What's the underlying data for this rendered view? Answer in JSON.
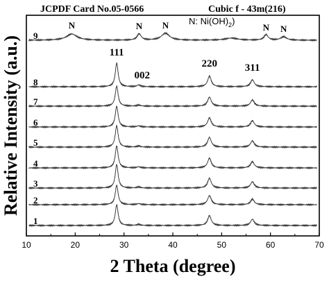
{
  "chart_data": {
    "type": "line",
    "xlabel": "2 Theta (degree)",
    "ylabel": "Relative Intensity (a.u.)",
    "xlim": [
      10,
      70
    ],
    "x_ticks": [
      10,
      20,
      30,
      40,
      50,
      60,
      70
    ],
    "grid": false,
    "legend": "none",
    "header_left": "JCPDF Card No.05-0566",
    "header_right": "Cubic  f - 43m(216)",
    "ni_oh2_note_prefix": "N: Ni(OH)",
    "ni_oh2_note_subscript": "2",
    "peak_labels": [
      {
        "text": "111",
        "x": 28.5
      },
      {
        "text": "002",
        "x": 33.0
      },
      {
        "text": "220",
        "x": 47.5
      },
      {
        "text": "311",
        "x": 56.3
      }
    ],
    "n_peak_labels": [
      {
        "text": "N",
        "x": 19.3
      },
      {
        "text": "N",
        "x": 33.1
      },
      {
        "text": "N",
        "x": 38.5
      },
      {
        "text": "N",
        "x": 59.1
      },
      {
        "text": "N",
        "x": 62.7
      }
    ],
    "series": [
      {
        "name": "1",
        "peaks": [
          {
            "x": 28.5,
            "h": 30,
            "w": 0.35
          },
          {
            "x": 33.0,
            "h": 1.5,
            "w": 0.4
          },
          {
            "x": 47.5,
            "h": 14,
            "w": 0.45
          },
          {
            "x": 56.3,
            "h": 9,
            "w": 0.45
          }
        ]
      },
      {
        "name": "2",
        "peaks": [
          {
            "x": 28.5,
            "h": 28,
            "w": 0.35
          },
          {
            "x": 33.0,
            "h": 1.5,
            "w": 0.4
          },
          {
            "x": 47.5,
            "h": 13,
            "w": 0.45
          },
          {
            "x": 56.3,
            "h": 8,
            "w": 0.45
          }
        ]
      },
      {
        "name": "3",
        "peaks": [
          {
            "x": 28.5,
            "h": 34,
            "w": 0.35
          },
          {
            "x": 33.0,
            "h": 1.5,
            "w": 0.4
          },
          {
            "x": 47.5,
            "h": 14,
            "w": 0.45
          },
          {
            "x": 56.3,
            "h": 9,
            "w": 0.45
          }
        ]
      },
      {
        "name": "4",
        "peaks": [
          {
            "x": 28.5,
            "h": 32,
            "w": 0.35
          },
          {
            "x": 33.0,
            "h": 1.5,
            "w": 0.4
          },
          {
            "x": 47.5,
            "h": 14,
            "w": 0.45
          },
          {
            "x": 56.3,
            "h": 9,
            "w": 0.45
          }
        ]
      },
      {
        "name": "5",
        "peaks": [
          {
            "x": 28.5,
            "h": 31,
            "w": 0.35
          },
          {
            "x": 33.0,
            "h": 1.5,
            "w": 0.4
          },
          {
            "x": 47.5,
            "h": 14,
            "w": 0.45
          },
          {
            "x": 56.3,
            "h": 9,
            "w": 0.45
          }
        ]
      },
      {
        "name": "6",
        "peaks": [
          {
            "x": 28.5,
            "h": 30,
            "w": 0.35
          },
          {
            "x": 33.0,
            "h": 1.5,
            "w": 0.4
          },
          {
            "x": 47.5,
            "h": 13,
            "w": 0.45
          },
          {
            "x": 56.3,
            "h": 9,
            "w": 0.45
          }
        ]
      },
      {
        "name": "7",
        "peaks": [
          {
            "x": 28.5,
            "h": 29,
            "w": 0.35
          },
          {
            "x": 33.0,
            "h": 1.5,
            "w": 0.4
          },
          {
            "x": 47.5,
            "h": 13,
            "w": 0.45
          },
          {
            "x": 56.3,
            "h": 9,
            "w": 0.45
          }
        ]
      },
      {
        "name": "8",
        "peaks": [
          {
            "x": 28.5,
            "h": 34,
            "w": 0.35
          },
          {
            "x": 33.0,
            "h": 2.5,
            "w": 0.4
          },
          {
            "x": 47.5,
            "h": 15,
            "w": 0.45
          },
          {
            "x": 56.3,
            "h": 10,
            "w": 0.45
          }
        ]
      },
      {
        "name": "9",
        "peaks": [
          {
            "x": 19.3,
            "h": 9,
            "w": 1.3
          },
          {
            "x": 33.1,
            "h": 9,
            "w": 0.5
          },
          {
            "x": 38.5,
            "h": 10,
            "w": 1.0
          },
          {
            "x": 52.0,
            "h": 3,
            "w": 1.5
          },
          {
            "x": 59.1,
            "h": 8,
            "w": 0.5
          },
          {
            "x": 62.7,
            "h": 5,
            "w": 0.7
          }
        ]
      }
    ]
  }
}
